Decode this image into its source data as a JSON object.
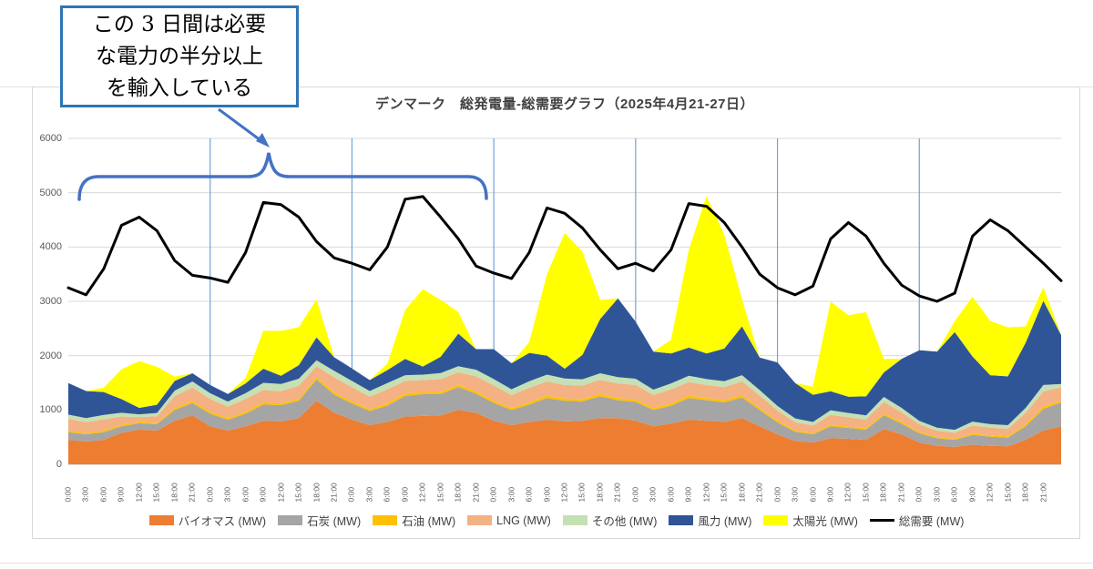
{
  "annotation": {
    "text": "この 3 日間は必要\nな電力の半分以上\nを輸入している",
    "box_border_color": "#2e75b6",
    "accent_color": "#4472c4"
  },
  "chart_data": {
    "type": "area",
    "stacked": true,
    "title": "デンマーク　総発電量-総需要グラフ（2025年4月21-27日）",
    "xlabel": "",
    "ylabel": "",
    "ylim": [
      0,
      6000
    ],
    "y_ticks": [
      0,
      1000,
      2000,
      3000,
      4000,
      5000,
      6000
    ],
    "x_points": 57,
    "x_tick_labels": [
      "0:00",
      "3:00",
      "6:00",
      "9:00",
      "12:00",
      "15:00",
      "18:00",
      "21:00",
      "0:00",
      "3:00",
      "6:00",
      "9:00",
      "12:00",
      "15:00",
      "18:00",
      "21:00",
      "0:00",
      "3:00",
      "6:00",
      "9:00",
      "12:00",
      "15:00",
      "18:00",
      "21:00",
      "0:00",
      "3:00",
      "6:00",
      "9:00",
      "12:00",
      "15:00",
      "18:00",
      "21:00",
      "0:00",
      "3:00",
      "6:00",
      "9:00",
      "12:00",
      "15:00",
      "18:00",
      "21:00",
      "0:00",
      "3:00",
      "6:00",
      "9:00",
      "12:00",
      "15:00",
      "18:00",
      "21:00",
      "0:00",
      "3:00",
      "6:00",
      "9:00",
      "12:00",
      "15:00",
      "18:00",
      "21:00"
    ],
    "day_separator_indices": [
      8,
      16,
      24,
      32,
      40,
      48
    ],
    "grid": true,
    "legend_position": "bottom",
    "grid_color": "#d9d9d9",
    "day_separator_color": "#6fa3d8",
    "axis_text_color": "#595959",
    "series": [
      {
        "name": "バイオマス (MW)",
        "type": "area",
        "color": "#ED7D31",
        "values": [
          450,
          420,
          450,
          580,
          640,
          620,
          800,
          900,
          700,
          620,
          700,
          800,
          790,
          850,
          1170,
          950,
          820,
          720,
          780,
          880,
          890,
          900,
          1000,
          950,
          800,
          720,
          780,
          820,
          790,
          800,
          850,
          850,
          800,
          700,
          750,
          820,
          800,
          780,
          850,
          700,
          550,
          430,
          400,
          480,
          470,
          450,
          650,
          550,
          400,
          340,
          320,
          360,
          340,
          330,
          450,
          620,
          700
        ]
      },
      {
        "name": "石炭 (MW)",
        "type": "area",
        "color": "#A5A5A5",
        "values": [
          140,
          130,
          140,
          120,
          115,
          120,
          200,
          230,
          230,
          200,
          230,
          300,
          300,
          320,
          390,
          330,
          300,
          260,
          300,
          380,
          400,
          390,
          420,
          350,
          330,
          280,
          320,
          400,
          380,
          360,
          400,
          330,
          350,
          300,
          330,
          400,
          380,
          360,
          380,
          300,
          220,
          170,
          150,
          220,
          200,
          190,
          250,
          200,
          170,
          140,
          130,
          180,
          170,
          160,
          250,
          400,
          440
        ]
      },
      {
        "name": "石油 (MW)",
        "type": "area",
        "color": "#FFC000",
        "values": [
          25,
          25,
          30,
          30,
          25,
          25,
          35,
          35,
          35,
          30,
          35,
          40,
          35,
          35,
          45,
          40,
          40,
          35,
          40,
          45,
          40,
          40,
          45,
          40,
          40,
          35,
          40,
          45,
          40,
          40,
          45,
          40,
          40,
          35,
          40,
          45,
          40,
          40,
          45,
          35,
          30,
          25,
          25,
          30,
          25,
          25,
          35,
          30,
          25,
          20,
          20,
          25,
          25,
          25,
          35,
          40,
          30
        ]
      },
      {
        "name": "LNG (MW)",
        "type": "area",
        "color": "#F4B183",
        "values": [
          220,
          200,
          210,
          150,
          90,
          120,
          220,
          250,
          240,
          210,
          240,
          230,
          220,
          240,
          200,
          280,
          260,
          230,
          260,
          230,
          220,
          240,
          230,
          280,
          280,
          240,
          270,
          260,
          250,
          250,
          260,
          270,
          270,
          240,
          260,
          250,
          240,
          240,
          250,
          230,
          190,
          150,
          140,
          180,
          170,
          160,
          210,
          180,
          140,
          120,
          110,
          150,
          140,
          140,
          210,
          280,
          250
        ]
      },
      {
        "name": "その他 (MW)",
        "type": "area",
        "color": "#C5E0B4",
        "values": [
          80,
          75,
          80,
          70,
          50,
          60,
          100,
          110,
          105,
          95,
          105,
          130,
          135,
          130,
          110,
          120,
          115,
          105,
          115,
          105,
          100,
          110,
          110,
          120,
          120,
          105,
          120,
          125,
          120,
          115,
          120,
          115,
          115,
          100,
          110,
          115,
          110,
          110,
          115,
          100,
          85,
          70,
          65,
          85,
          80,
          75,
          95,
          80,
          65,
          55,
          55,
          70,
          65,
          65,
          95,
          120,
          60
        ]
      },
      {
        "name": "風力 (MW)",
        "type": "area",
        "color": "#2F5597",
        "values": [
          580,
          500,
          420,
          250,
          120,
          150,
          180,
          150,
          150,
          140,
          180,
          260,
          150,
          250,
          420,
          250,
          230,
          200,
          240,
          300,
          150,
          300,
          600,
          380,
          550,
          480,
          520,
          350,
          180,
          450,
          1000,
          1450,
          1050,
          700,
          550,
          520,
          470,
          600,
          900,
          600,
          800,
          650,
          500,
          350,
          300,
          350,
          450,
          900,
          1300,
          1400,
          1800,
          1200,
          900,
          900,
          1200,
          1550,
          900
        ]
      },
      {
        "name": "太陽光 (MW)",
        "type": "area",
        "color": "#FFFF00",
        "values": [
          0,
          0,
          80,
          550,
          860,
          700,
          80,
          0,
          0,
          0,
          100,
          700,
          825,
          700,
          700,
          0,
          0,
          0,
          120,
          900,
          1425,
          1050,
          400,
          0,
          0,
          0,
          200,
          1500,
          2500,
          1900,
          350,
          0,
          0,
          0,
          250,
          1800,
          2900,
          2100,
          500,
          0,
          0,
          0,
          150,
          1650,
          1500,
          1550,
          250,
          0,
          0,
          0,
          200,
          1100,
          1000,
          900,
          300,
          250,
          0
        ]
      },
      {
        "name": "総需要 (MW)",
        "type": "line",
        "color": "#000000",
        "values": [
          3250,
          3120,
          3600,
          4400,
          4550,
          4300,
          3750,
          3480,
          3430,
          3350,
          3900,
          4820,
          4780,
          4550,
          4100,
          3800,
          3700,
          3580,
          4000,
          4880,
          4930,
          4550,
          4150,
          3650,
          3520,
          3420,
          3900,
          4720,
          4620,
          4350,
          3950,
          3600,
          3700,
          3560,
          3950,
          4800,
          4750,
          4450,
          4000,
          3500,
          3250,
          3120,
          3280,
          4150,
          4450,
          4200,
          3700,
          3300,
          3100,
          3000,
          3150,
          4200,
          4500,
          4300,
          4000,
          3700,
          3380
        ]
      }
    ]
  }
}
